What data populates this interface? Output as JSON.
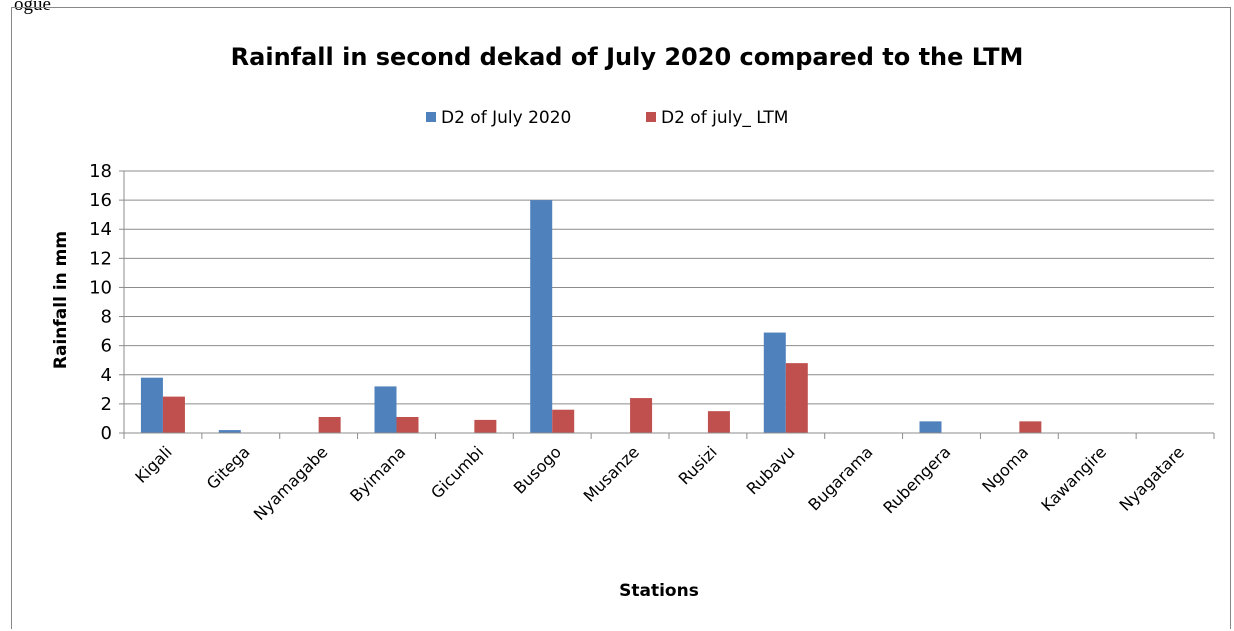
{
  "header_fragment": "ogue",
  "chart_data": {
    "type": "bar",
    "title": "Rainfall in second dekad of July 2020 compared to the LTM",
    "xlabel": "Stations",
    "ylabel": "Rainfall in mm",
    "ylim": [
      0,
      18
    ],
    "yticks": [
      0,
      2,
      4,
      6,
      8,
      10,
      12,
      14,
      16,
      18
    ],
    "grid": true,
    "legend_position": "top",
    "categories": [
      "Kigali",
      "Gitega",
      "Nyamagabe",
      "Byimana",
      "Gicumbi",
      "Busogo",
      "Musanze",
      "Rusizi",
      "Rubavu",
      "Bugarama",
      "Rubengera",
      "Ngoma",
      "Kawangire",
      "Nyagatare"
    ],
    "series": [
      {
        "name": "D2 of July 2020",
        "color": "#4f81bd",
        "values": [
          3.8,
          0.2,
          0,
          3.2,
          0,
          16.0,
          0,
          0,
          6.9,
          0,
          0.8,
          0,
          0,
          0
        ]
      },
      {
        "name": "D2 of july_ LTM",
        "color": "#c0504d",
        "values": [
          2.5,
          0,
          1.1,
          1.1,
          0.9,
          1.6,
          2.4,
          1.5,
          4.8,
          0,
          0,
          0.8,
          0,
          0
        ]
      }
    ]
  }
}
